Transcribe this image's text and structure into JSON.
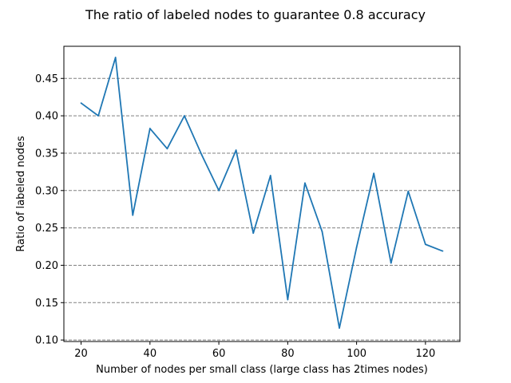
{
  "chart_data": {
    "type": "line",
    "title": "The ratio of labeled nodes to guarantee 0.8 accuracy",
    "xlabel": "Number of nodes per small class (large class has 2times nodes)",
    "ylabel": "Ratio of labeled nodes",
    "xlim": [
      15,
      130
    ],
    "ylim": [
      0.098,
      0.493
    ],
    "x_ticks": [
      20,
      40,
      60,
      80,
      100,
      120
    ],
    "x_tick_labels": [
      "20",
      "40",
      "60",
      "80",
      "100",
      "120"
    ],
    "y_ticks": [
      0.1,
      0.15,
      0.2,
      0.25,
      0.3,
      0.35,
      0.4,
      0.45
    ],
    "y_tick_labels": [
      "0.10",
      "0.15",
      "0.20",
      "0.25",
      "0.30",
      "0.35",
      "0.40",
      "0.45"
    ],
    "grid": "horizontal-dashed",
    "series": [
      {
        "name": "ratio",
        "color": "#1f77b4",
        "x": [
          20,
          25,
          30,
          35,
          40,
          45,
          50,
          55,
          60,
          65,
          70,
          75,
          80,
          85,
          90,
          95,
          100,
          105,
          110,
          115,
          120,
          125
        ],
        "y": [
          0.417,
          0.4,
          0.478,
          0.267,
          0.383,
          0.356,
          0.4,
          0.348,
          0.3,
          0.354,
          0.243,
          0.32,
          0.154,
          0.31,
          0.245,
          0.116,
          0.224,
          0.323,
          0.203,
          0.299,
          0.228,
          0.219
        ]
      }
    ]
  }
}
